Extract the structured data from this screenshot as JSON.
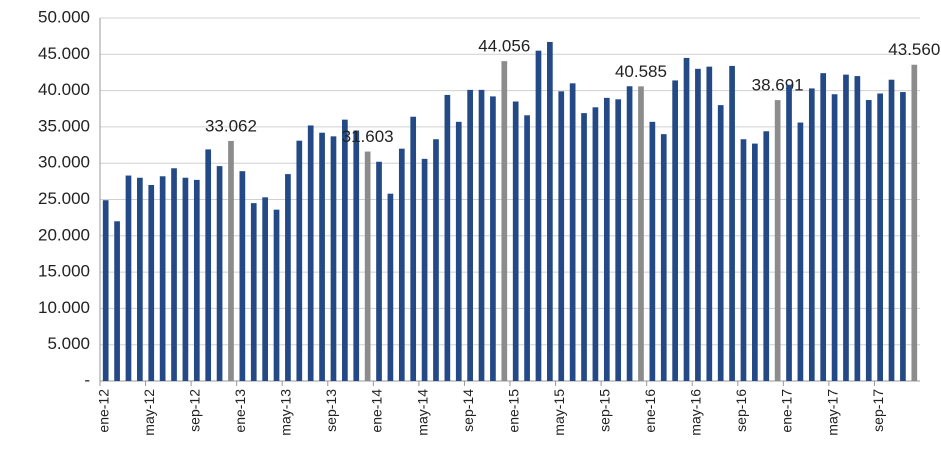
{
  "chart_data": {
    "type": "bar",
    "categories": [
      "ene-12",
      null,
      null,
      null,
      "may-12",
      null,
      null,
      null,
      "sep-12",
      null,
      null,
      null,
      "ene-13",
      null,
      null,
      null,
      "may-13",
      null,
      null,
      null,
      "sep-13",
      null,
      null,
      null,
      "ene-14",
      null,
      null,
      null,
      "may-14",
      null,
      null,
      null,
      "sep-14",
      null,
      null,
      null,
      "ene-15",
      null,
      null,
      null,
      "may-15",
      null,
      null,
      null,
      "sep-15",
      null,
      null,
      null,
      "ene-16",
      null,
      null,
      null,
      "may-16",
      null,
      null,
      null,
      "sep-16",
      null,
      null,
      null,
      "ene-17",
      null,
      null,
      null,
      "may-17",
      null,
      null,
      null,
      "sep-17",
      null,
      null,
      null
    ],
    "values": [
      24900,
      22000,
      28300,
      28000,
      27000,
      28200,
      29300,
      28000,
      27700,
      31900,
      29600,
      33062,
      28900,
      24500,
      25300,
      23600,
      28500,
      33100,
      35200,
      34200,
      33700,
      36000,
      34500,
      31603,
      30200,
      25800,
      32000,
      36400,
      30600,
      33300,
      39400,
      35700,
      40100,
      40100,
      39200,
      44056,
      38500,
      36600,
      45500,
      46700,
      39900,
      41000,
      36900,
      37700,
      39000,
      38800,
      40600,
      40585,
      35700,
      34000,
      41400,
      44500,
      43000,
      43300,
      38000,
      43400,
      33300,
      32700,
      34400,
      38691,
      40800,
      35600,
      40300,
      42400,
      39500,
      42200,
      42000,
      38700,
      39600,
      41500,
      39800,
      43560
    ],
    "value_labels": [
      null,
      null,
      null,
      null,
      null,
      null,
      null,
      null,
      null,
      null,
      null,
      "33.062",
      null,
      null,
      null,
      null,
      null,
      null,
      null,
      null,
      null,
      null,
      null,
      "31.603",
      null,
      null,
      null,
      null,
      null,
      null,
      null,
      null,
      null,
      null,
      null,
      "44.056",
      null,
      null,
      null,
      null,
      null,
      null,
      null,
      null,
      null,
      null,
      null,
      "40.585",
      null,
      null,
      null,
      null,
      null,
      null,
      null,
      null,
      null,
      null,
      null,
      "38.691",
      null,
      null,
      null,
      null,
      null,
      null,
      null,
      null,
      null,
      null,
      null,
      "43.560"
    ],
    "colors": [
      "#234a86",
      "#234a86",
      "#234a86",
      "#234a86",
      "#234a86",
      "#234a86",
      "#234a86",
      "#234a86",
      "#234a86",
      "#234a86",
      "#234a86",
      "#8c8c8c",
      "#234a86",
      "#234a86",
      "#234a86",
      "#234a86",
      "#234a86",
      "#234a86",
      "#234a86",
      "#234a86",
      "#234a86",
      "#234a86",
      "#234a86",
      "#8c8c8c",
      "#234a86",
      "#234a86",
      "#234a86",
      "#234a86",
      "#234a86",
      "#234a86",
      "#234a86",
      "#234a86",
      "#234a86",
      "#234a86",
      "#234a86",
      "#8c8c8c",
      "#234a86",
      "#234a86",
      "#234a86",
      "#234a86",
      "#234a86",
      "#234a86",
      "#234a86",
      "#234a86",
      "#234a86",
      "#234a86",
      "#234a86",
      "#8c8c8c",
      "#234a86",
      "#234a86",
      "#234a86",
      "#234a86",
      "#234a86",
      "#234a86",
      "#234a86",
      "#234a86",
      "#234a86",
      "#234a86",
      "#234a86",
      "#8c8c8c",
      "#234a86",
      "#234a86",
      "#234a86",
      "#234a86",
      "#234a86",
      "#234a86",
      "#234a86",
      "#234a86",
      "#234a86",
      "#234a86",
      "#234a86",
      "#8c8c8c"
    ],
    "ylim": [
      0,
      50000
    ],
    "yticks": [
      {
        "value": 0,
        "label": "-"
      },
      {
        "value": 5000,
        "label": "5.000"
      },
      {
        "value": 10000,
        "label": "10.000"
      },
      {
        "value": 15000,
        "label": "15.000"
      },
      {
        "value": 20000,
        "label": "20.000"
      },
      {
        "value": 25000,
        "label": "25.000"
      },
      {
        "value": 30000,
        "label": "30.000"
      },
      {
        "value": 35000,
        "label": "35.000"
      },
      {
        "value": 40000,
        "label": "40.000"
      },
      {
        "value": 45000,
        "label": "45.000"
      },
      {
        "value": 50000,
        "label": "50.000"
      }
    ],
    "grid": true
  }
}
